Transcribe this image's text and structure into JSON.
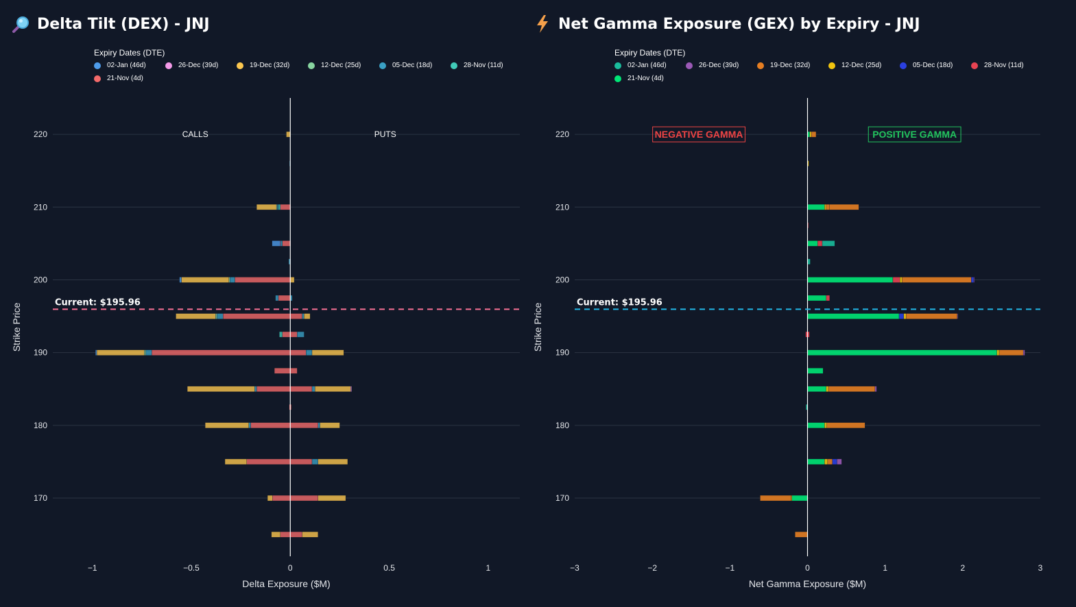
{
  "panels": {
    "left": {
      "title": "Delta Tilt (DEX) - JNJ",
      "icon": "magnifier-icon"
    },
    "right": {
      "title": "Net Gamma Exposure (GEX) by Expiry - JNJ",
      "icon": "lightning-icon"
    }
  },
  "chart_data": [
    {
      "type": "bar",
      "orientation": "horizontal",
      "stacked": true,
      "title": "Delta Tilt (DEX) - JNJ",
      "xlabel": "Delta Exposure ($M)",
      "ylabel": "Strike Price",
      "xlim": [
        -1.2,
        1.16
      ],
      "ylim": [
        162,
        225
      ],
      "xticks": [
        -1,
        -0.5,
        0,
        0.5,
        1
      ],
      "xtick_labels": [
        "−1",
        "−0.5",
        "0",
        "0.5",
        "1"
      ],
      "yticks": [
        170,
        180,
        190,
        200,
        210,
        220
      ],
      "annotations": [
        {
          "text": "CALLS",
          "x": -0.48,
          "y": 220
        },
        {
          "text": "PUTS",
          "x": 0.48,
          "y": 220
        }
      ],
      "current_price": {
        "value": 195.96,
        "label": "Current: $195.96",
        "color": "#f87196"
      },
      "legend_title": "Expiry Dates (DTE)",
      "series": [
        {
          "name": "02-Jan (46d)",
          "color": "#4e9ceb"
        },
        {
          "name": "26-Dec (39d)",
          "color": "#f49ae8"
        },
        {
          "name": "19-Dec (32d)",
          "color": "#fcc74f"
        },
        {
          "name": "12-Dec (25d)",
          "color": "#88d5a0"
        },
        {
          "name": "05-Dec (18d)",
          "color": "#3aa0c4"
        },
        {
          "name": "28-Nov (11d)",
          "color": "#41cbb8"
        },
        {
          "name": "21-Nov (4d)",
          "color": "#f46a6a"
        }
      ],
      "bars": [
        {
          "strike": 220,
          "neg": [
            {
              "s": 2,
              "v": 0.02
            }
          ],
          "pos": []
        },
        {
          "strike": 216,
          "neg": [
            {
              "s": 4,
              "v": 0.004
            }
          ],
          "pos": []
        },
        {
          "strike": 210,
          "neg": [
            {
              "s": 6,
              "v": 0.05
            },
            {
              "s": 5,
              "v": 0.01
            },
            {
              "s": 4,
              "v": 0.006
            },
            {
              "s": 3,
              "v": 0.004
            },
            {
              "s": 2,
              "v": 0.1
            }
          ],
          "pos": []
        },
        {
          "strike": 205,
          "neg": [
            {
              "s": 6,
              "v": 0.04
            },
            {
              "s": 4,
              "v": 0.01
            },
            {
              "s": 1,
              "v": 0.002
            },
            {
              "s": 0,
              "v": 0.04
            }
          ],
          "pos": []
        },
        {
          "strike": 202.5,
          "neg": [
            {
              "s": 4,
              "v": 0.008
            }
          ],
          "pos": []
        },
        {
          "strike": 200,
          "neg": [
            {
              "s": 6,
              "v": 0.28
            },
            {
              "s": 4,
              "v": 0.025
            },
            {
              "s": 3,
              "v": 0.005
            },
            {
              "s": 2,
              "v": 0.24
            },
            {
              "s": 0,
              "v": 0.01
            }
          ],
          "pos": [
            {
              "s": 2,
              "v": 0.02
            }
          ]
        },
        {
          "strike": 197.5,
          "neg": [
            {
              "s": 6,
              "v": 0.06
            },
            {
              "s": 4,
              "v": 0.015
            }
          ],
          "pos": [
            {
              "s": 4,
              "v": 0.01
            }
          ]
        },
        {
          "strike": 195,
          "neg": [
            {
              "s": 6,
              "v": 0.34
            },
            {
              "s": 4,
              "v": 0.03
            },
            {
              "s": 3,
              "v": 0.008
            },
            {
              "s": 2,
              "v": 0.2
            }
          ],
          "pos": [
            {
              "s": 6,
              "v": 0.06
            },
            {
              "s": 4,
              "v": 0.01
            },
            {
              "s": 2,
              "v": 0.03
            }
          ]
        },
        {
          "strike": 192.5,
          "neg": [
            {
              "s": 6,
              "v": 0.04
            },
            {
              "s": 5,
              "v": 0.015
            }
          ],
          "pos": [
            {
              "s": 6,
              "v": 0.035
            },
            {
              "s": 4,
              "v": 0.035
            }
          ]
        },
        {
          "strike": 190,
          "neg": [
            {
              "s": 6,
              "v": 0.7
            },
            {
              "s": 4,
              "v": 0.03
            },
            {
              "s": 3,
              "v": 0.008
            },
            {
              "s": 2,
              "v": 0.24
            },
            {
              "s": 0,
              "v": 0.006
            }
          ],
          "pos": [
            {
              "s": 6,
              "v": 0.08
            },
            {
              "s": 4,
              "v": 0.03
            },
            {
              "s": 2,
              "v": 0.16
            }
          ]
        },
        {
          "strike": 187.5,
          "neg": [
            {
              "s": 6,
              "v": 0.08
            }
          ],
          "pos": [
            {
              "s": 6,
              "v": 0.035
            }
          ]
        },
        {
          "strike": 185,
          "neg": [
            {
              "s": 6,
              "v": 0.17
            },
            {
              "s": 4,
              "v": 0.01
            },
            {
              "s": 2,
              "v": 0.34
            }
          ],
          "pos": [
            {
              "s": 6,
              "v": 0.11
            },
            {
              "s": 4,
              "v": 0.015
            },
            {
              "s": 2,
              "v": 0.18
            },
            {
              "s": 1,
              "v": 0.005
            }
          ]
        },
        {
          "strike": 182.5,
          "neg": [
            {
              "s": 6,
              "v": 0.005
            }
          ],
          "pos": [
            {
              "s": 6,
              "v": 0.005
            }
          ]
        },
        {
          "strike": 180,
          "neg": [
            {
              "s": 6,
              "v": 0.2
            },
            {
              "s": 4,
              "v": 0.01
            },
            {
              "s": 2,
              "v": 0.22
            }
          ],
          "pos": [
            {
              "s": 6,
              "v": 0.14
            },
            {
              "s": 4,
              "v": 0.01
            },
            {
              "s": 2,
              "v": 0.1
            }
          ]
        },
        {
          "strike": 175,
          "neg": [
            {
              "s": 6,
              "v": 0.22
            },
            {
              "s": 2,
              "v": 0.11
            }
          ],
          "pos": [
            {
              "s": 6,
              "v": 0.11
            },
            {
              "s": 4,
              "v": 0.03
            },
            {
              "s": 2,
              "v": 0.15
            }
          ]
        },
        {
          "strike": 170,
          "neg": [
            {
              "s": 6,
              "v": 0.09
            },
            {
              "s": 2,
              "v": 0.025
            }
          ],
          "pos": [
            {
              "s": 6,
              "v": 0.14
            },
            {
              "s": 2,
              "v": 0.14
            }
          ]
        },
        {
          "strike": 165,
          "neg": [
            {
              "s": 6,
              "v": 0.05
            },
            {
              "s": 2,
              "v": 0.045
            }
          ],
          "pos": [
            {
              "s": 6,
              "v": 0.06
            },
            {
              "s": 2,
              "v": 0.08
            }
          ]
        }
      ]
    },
    {
      "type": "bar",
      "orientation": "horizontal",
      "stacked": true,
      "title": "Net Gamma Exposure (GEX) by Expiry - JNJ",
      "xlabel": "Net Gamma Exposure ($M)",
      "ylabel": "Strike Price",
      "xlim": [
        -3,
        3
      ],
      "ylim": [
        162,
        225
      ],
      "xticks": [
        -3,
        -2,
        -1,
        0,
        1,
        2,
        3
      ],
      "xtick_labels": [
        "−3",
        "−2",
        "−1",
        "0",
        "1",
        "2",
        "3"
      ],
      "yticks": [
        170,
        180,
        190,
        200,
        210,
        220
      ],
      "annotations": [
        {
          "text": "NEGATIVE GAMMA",
          "x": -1.4,
          "y": 220,
          "color": "#ef4444"
        },
        {
          "text": "POSITIVE GAMMA",
          "x": 1.38,
          "y": 220,
          "color": "#22c55e"
        }
      ],
      "current_price": {
        "value": 195.96,
        "label": "Current: $195.96",
        "color": "#22b8e8"
      },
      "legend_title": "Expiry Dates (DTE)",
      "series": [
        {
          "name": "02-Jan (46d)",
          "color": "#1abc9c"
        },
        {
          "name": "26-Dec (39d)",
          "color": "#9b59b6"
        },
        {
          "name": "19-Dec (32d)",
          "color": "#e67e22"
        },
        {
          "name": "12-Dec (25d)",
          "color": "#f1c40f"
        },
        {
          "name": "05-Dec (18d)",
          "color": "#2a3fe0"
        },
        {
          "name": "28-Nov (11d)",
          "color": "#e84352"
        },
        {
          "name": "21-Nov (4d)",
          "color": "#00e676"
        }
      ],
      "bars": [
        {
          "strike": 220,
          "neg": [],
          "pos": [
            {
              "s": 6,
              "v": 0.03
            },
            {
              "s": 3,
              "v": 0.02
            },
            {
              "s": 2,
              "v": 0.06
            }
          ]
        },
        {
          "strike": 216,
          "neg": [],
          "pos": [
            {
              "s": 3,
              "v": 0.015
            }
          ]
        },
        {
          "strike": 210,
          "neg": [],
          "pos": [
            {
              "s": 6,
              "v": 0.22
            },
            {
              "s": 3,
              "v": 0.02
            },
            {
              "s": 2,
              "v": 0.04
            },
            {
              "s": 2,
              "v": 0.38
            }
          ]
        },
        {
          "strike": 207.5,
          "neg": [],
          "pos": [
            {
              "s": 5,
              "v": 0.012
            }
          ]
        },
        {
          "strike": 205,
          "neg": [],
          "pos": [
            {
              "s": 6,
              "v": 0.13
            },
            {
              "s": 5,
              "v": 0.06
            },
            {
              "s": 0,
              "v": 0.16
            }
          ]
        },
        {
          "strike": 202.5,
          "neg": [],
          "pos": [
            {
              "s": 0,
              "v": 0.035
            }
          ]
        },
        {
          "strike": 200,
          "neg": [],
          "pos": [
            {
              "s": 6,
              "v": 1.1
            },
            {
              "s": 5,
              "v": 0.09
            },
            {
              "s": 3,
              "v": 0.03
            },
            {
              "s": 2,
              "v": 0.89
            },
            {
              "s": 4,
              "v": 0.03
            },
            {
              "s": 1,
              "v": 0.01
            }
          ]
        },
        {
          "strike": 197.5,
          "neg": [],
          "pos": [
            {
              "s": 6,
              "v": 0.24
            },
            {
              "s": 5,
              "v": 0.045
            }
          ]
        },
        {
          "strike": 195,
          "neg": [],
          "pos": [
            {
              "s": 6,
              "v": 1.18
            },
            {
              "s": 4,
              "v": 0.06
            },
            {
              "s": 3,
              "v": 0.03
            },
            {
              "s": 2,
              "v": 0.66
            },
            {
              "s": 1,
              "v": 0.005
            }
          ]
        },
        {
          "strike": 192.5,
          "neg": [
            {
              "s": 5,
              "v": 0.025
            }
          ],
          "pos": [
            {
              "s": 5,
              "v": 0.025
            }
          ]
        },
        {
          "strike": 190,
          "neg": [],
          "pos": [
            {
              "s": 6,
              "v": 2.44
            },
            {
              "s": 3,
              "v": 0.03
            },
            {
              "s": 2,
              "v": 0.31
            },
            {
              "s": 1,
              "v": 0.02
            }
          ]
        },
        {
          "strike": 187.5,
          "neg": [],
          "pos": [
            {
              "s": 6,
              "v": 0.2
            }
          ]
        },
        {
          "strike": 185,
          "neg": [],
          "pos": [
            {
              "s": 6,
              "v": 0.24
            },
            {
              "s": 3,
              "v": 0.03
            },
            {
              "s": 2,
              "v": 0.6
            },
            {
              "s": 1,
              "v": 0.02
            }
          ]
        },
        {
          "strike": 182.5,
          "neg": [
            {
              "s": 0,
              "v": 0.02
            }
          ],
          "pos": []
        },
        {
          "strike": 180,
          "neg": [],
          "pos": [
            {
              "s": 6,
              "v": 0.22
            },
            {
              "s": 3,
              "v": 0.03
            },
            {
              "s": 2,
              "v": 0.49
            }
          ]
        },
        {
          "strike": 177.5,
          "neg": [
            {
              "s": 0,
              "v": 0.005
            }
          ],
          "pos": []
        },
        {
          "strike": 175,
          "neg": [],
          "pos": [
            {
              "s": 6,
              "v": 0.22
            },
            {
              "s": 3,
              "v": 0.04
            },
            {
              "s": 2,
              "v": 0.06
            },
            {
              "s": 4,
              "v": 0.06
            },
            {
              "s": 1,
              "v": 0.06
            }
          ]
        },
        {
          "strike": 170,
          "neg": [
            {
              "s": 6,
              "v": 0.2
            },
            {
              "s": 3,
              "v": 0.01
            },
            {
              "s": 2,
              "v": 0.4
            }
          ],
          "pos": []
        },
        {
          "strike": 165,
          "neg": [
            {
              "s": 2,
              "v": 0.16
            }
          ],
          "pos": []
        }
      ]
    }
  ]
}
